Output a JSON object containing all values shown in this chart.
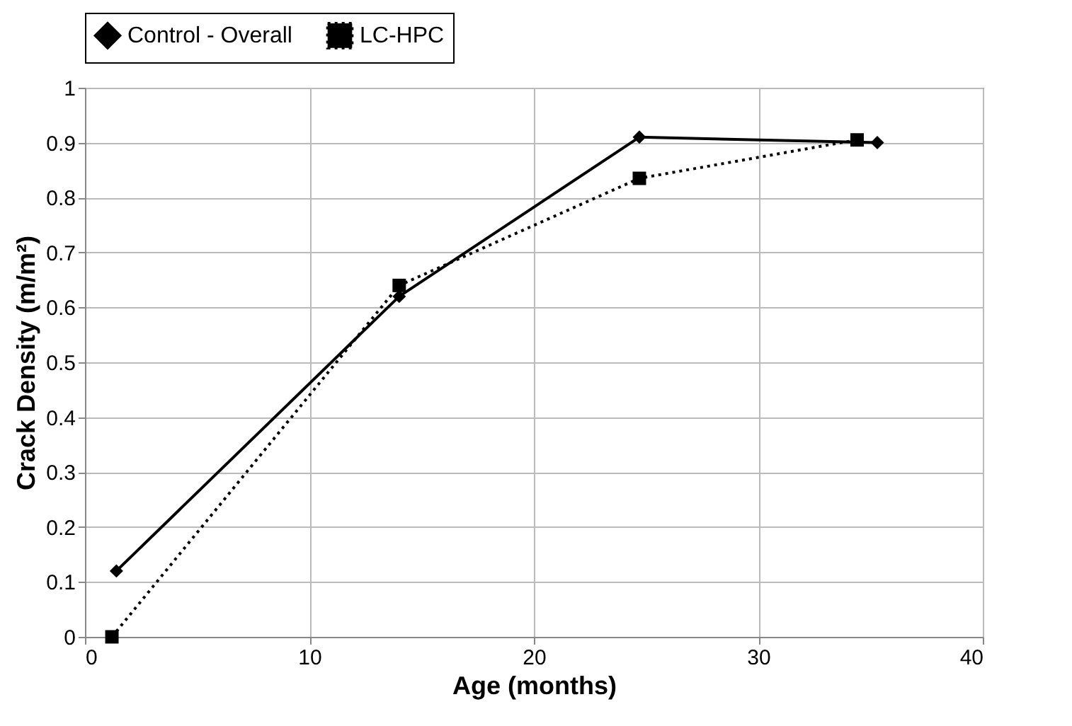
{
  "chart_data": {
    "type": "line",
    "xlabel": "Age (months)",
    "ylabel": "Crack Density (m/m²)",
    "xlim": [
      0,
      40
    ],
    "xticks": [
      0,
      10,
      20,
      30,
      40
    ],
    "ylim": [
      0,
      1
    ],
    "yticks": [
      0,
      0.1,
      0.2,
      0.3,
      0.4,
      0.5,
      0.6,
      0.7,
      0.8,
      0.9,
      1
    ],
    "grid": true,
    "legend": "top",
    "series": [
      {
        "name": "Control - Overall",
        "color": "#000000",
        "marker": "diamond",
        "line_style": "solid",
        "x": [
          1.4,
          14,
          24.7,
          35.3
        ],
        "values": [
          0.12,
          0.62,
          0.91,
          0.9
        ]
      },
      {
        "name": "LC-HPC",
        "color": "#000000",
        "marker": "square",
        "line_style": "dotted",
        "x": [
          1.2,
          14,
          24.7,
          34.4
        ],
        "values": [
          0,
          0.64,
          0.835,
          0.905
        ]
      }
    ]
  }
}
